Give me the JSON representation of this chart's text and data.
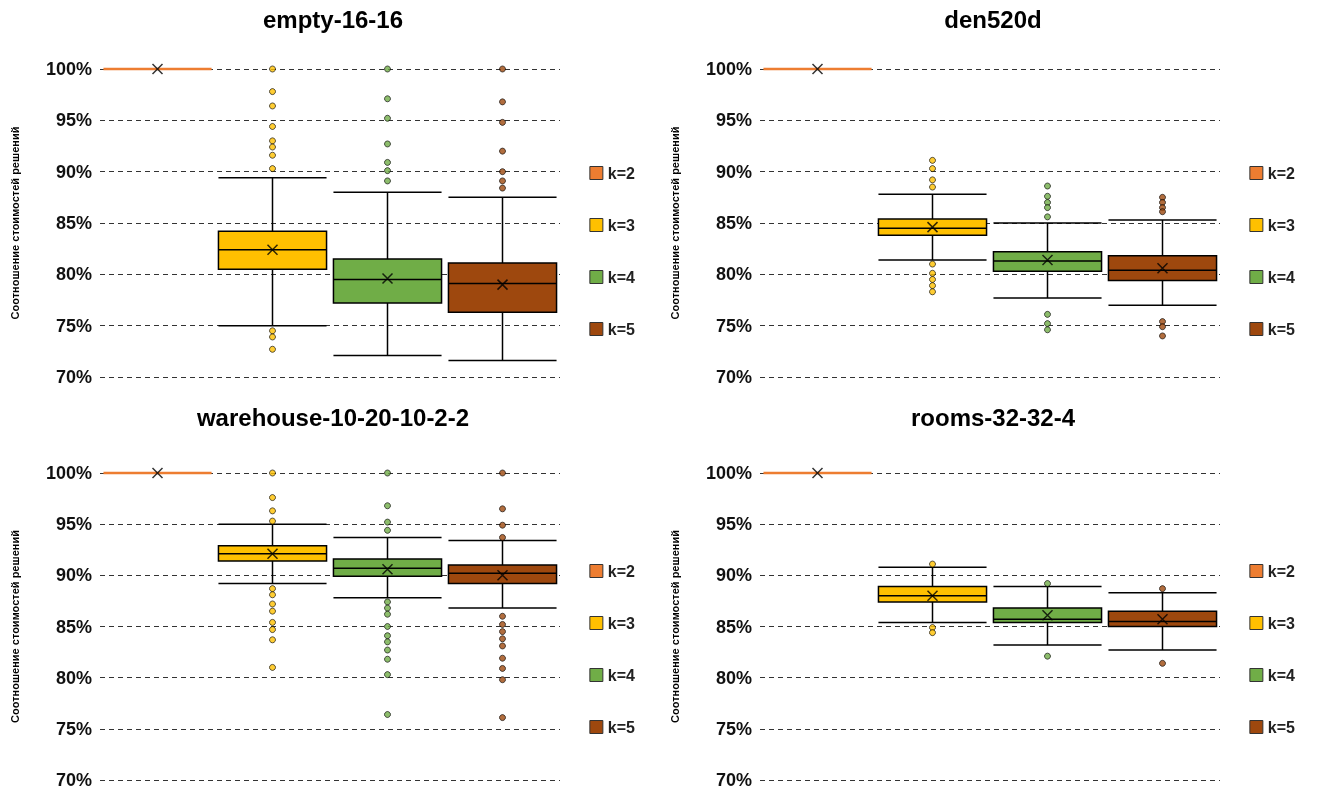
{
  "chart_data": [
    {
      "type": "box",
      "title": "empty-16-16",
      "ylabel": "Соотношение стоимостей решений",
      "categories": [
        null
      ],
      "ylim": [
        70,
        100
      ],
      "yticks": [
        {
          "value": 70,
          "label": "70%"
        },
        {
          "value": 75,
          "label": "75%"
        },
        {
          "value": 80,
          "label": "80%"
        },
        {
          "value": 85,
          "label": "85%"
        },
        {
          "value": 90,
          "label": "90%"
        },
        {
          "value": 95,
          "label": "95%"
        },
        {
          "value": 100,
          "label": "100%"
        }
      ],
      "grid": "y",
      "legend": "right",
      "series": [
        {
          "name": "k=2",
          "color": "#ed7d31",
          "boxes": [
            {
              "low": 100,
              "q1": 100,
              "median": 100,
              "q3": 100,
              "high": 100,
              "mean": 100
            }
          ]
        },
        {
          "name": "k=3",
          "color": "#ffc000",
          "boxes": [
            {
              "low": 75.0,
              "q1": 80.5,
              "median": 82.4,
              "q3": 84.2,
              "high": 89.4,
              "mean": 82.4,
              "outliers": [
                100,
                97.8,
                96.4,
                94.4,
                93.0,
                92.4,
                91.6,
                90.3,
                74.5,
                73.9,
                72.7
              ]
            }
          ]
        },
        {
          "name": "k=4",
          "color": "#70ad47",
          "boxes": [
            {
              "low": 72.1,
              "q1": 77.2,
              "median": 79.5,
              "q3": 81.5,
              "high": 88.0,
              "mean": 79.6,
              "outliers": [
                100,
                97.1,
                95.2,
                92.7,
                90.9,
                90.1,
                89.1
              ]
            }
          ]
        },
        {
          "name": "k=5",
          "color": "#9e480e",
          "boxes": [
            {
              "low": 71.6,
              "q1": 76.3,
              "median": 79.1,
              "q3": 81.1,
              "high": 87.5,
              "mean": 79.0,
              "outliers": [
                100,
                96.8,
                94.8,
                92.0,
                90.0,
                89.1,
                88.4
              ]
            }
          ]
        }
      ]
    },
    {
      "type": "box",
      "title": "den520d",
      "ylabel": "Соотношение стоимостей решений",
      "categories": [
        null
      ],
      "ylim": [
        70,
        100
      ],
      "yticks": [
        {
          "value": 70,
          "label": "70%"
        },
        {
          "value": 75,
          "label": "75%"
        },
        {
          "value": 80,
          "label": "80%"
        },
        {
          "value": 85,
          "label": "85%"
        },
        {
          "value": 90,
          "label": "90%"
        },
        {
          "value": 95,
          "label": "95%"
        },
        {
          "value": 100,
          "label": "100%"
        }
      ],
      "grid": "y",
      "legend": "right",
      "series": [
        {
          "name": "k=2",
          "color": "#ed7d31",
          "boxes": [
            {
              "low": 100,
              "q1": 100,
              "median": 100,
              "q3": 100,
              "high": 100,
              "mean": 100
            }
          ]
        },
        {
          "name": "k=3",
          "color": "#ffc000",
          "boxes": [
            {
              "low": 81.4,
              "q1": 83.8,
              "median": 84.5,
              "q3": 85.4,
              "high": 87.8,
              "mean": 84.6,
              "outliers": [
                91.1,
                90.3,
                89.2,
                88.5,
                81.0,
                80.1,
                79.5,
                78.9,
                78.3
              ]
            }
          ]
        },
        {
          "name": "k=4",
          "color": "#70ad47",
          "boxes": [
            {
              "low": 77.7,
              "q1": 80.3,
              "median": 81.3,
              "q3": 82.2,
              "high": 85.0,
              "mean": 81.4,
              "outliers": [
                88.6,
                87.6,
                87.0,
                86.5,
                85.6,
                76.1,
                75.2,
                74.6
              ]
            }
          ]
        },
        {
          "name": "k=5",
          "color": "#9e480e",
          "boxes": [
            {
              "low": 77.0,
              "q1": 79.4,
              "median": 80.4,
              "q3": 81.8,
              "high": 85.3,
              "mean": 80.6,
              "outliers": [
                87.5,
                87.0,
                86.5,
                86.1,
                75.4,
                74.9,
                74.0
              ]
            }
          ]
        }
      ]
    },
    {
      "type": "box",
      "title": "warehouse-10-20-10-2-2",
      "ylabel": "Соотношение стоимостей решений",
      "categories": [
        null
      ],
      "ylim": [
        70,
        100
      ],
      "yticks": [
        {
          "value": 70,
          "label": "70%"
        },
        {
          "value": 75,
          "label": "75%"
        },
        {
          "value": 80,
          "label": "80%"
        },
        {
          "value": 85,
          "label": "85%"
        },
        {
          "value": 90,
          "label": "90%"
        },
        {
          "value": 95,
          "label": "95%"
        },
        {
          "value": 100,
          "label": "100%"
        }
      ],
      "grid": "y",
      "legend": "right",
      "series": [
        {
          "name": "k=2",
          "color": "#ed7d31",
          "boxes": [
            {
              "low": 100,
              "q1": 100,
              "median": 100,
              "q3": 100,
              "high": 100,
              "mean": 100
            }
          ]
        },
        {
          "name": "k=3",
          "color": "#ffc000",
          "boxes": [
            {
              "low": 89.2,
              "q1": 91.4,
              "median": 92.1,
              "q3": 92.9,
              "high": 95.0,
              "mean": 92.1,
              "outliers": [
                100,
                97.6,
                96.3,
                95.3,
                88.7,
                88.1,
                87.2,
                86.5,
                85.4,
                84.7,
                83.7,
                81.0
              ]
            }
          ]
        },
        {
          "name": "k=4",
          "color": "#70ad47",
          "boxes": [
            {
              "low": 87.8,
              "q1": 89.9,
              "median": 90.7,
              "q3": 91.6,
              "high": 93.7,
              "mean": 90.6,
              "outliers": [
                100,
                96.8,
                95.2,
                94.4,
                87.4,
                86.8,
                86.2,
                85.0,
                84.1,
                83.5,
                82.7,
                81.8,
                80.3,
                76.4
              ]
            }
          ]
        },
        {
          "name": "k=5",
          "color": "#9e480e",
          "boxes": [
            {
              "low": 86.8,
              "q1": 89.2,
              "median": 90.2,
              "q3": 91.0,
              "high": 93.4,
              "mean": 90.0,
              "outliers": [
                100,
                96.5,
                94.9,
                93.7,
                86.0,
                85.2,
                84.5,
                83.8,
                83.1,
                81.9,
                80.9,
                79.8,
                76.1
              ]
            }
          ]
        }
      ]
    },
    {
      "type": "box",
      "title": "rooms-32-32-4",
      "ylabel": "Соотношение стоимостей решений",
      "categories": [
        null
      ],
      "ylim": [
        70,
        100
      ],
      "yticks": [
        {
          "value": 70,
          "label": "70%"
        },
        {
          "value": 75,
          "label": "75%"
        },
        {
          "value": 80,
          "label": "80%"
        },
        {
          "value": 85,
          "label": "85%"
        },
        {
          "value": 90,
          "label": "90%"
        },
        {
          "value": 95,
          "label": "95%"
        },
        {
          "value": 100,
          "label": "100%"
        }
      ],
      "grid": "y",
      "legend": "right",
      "series": [
        {
          "name": "k=2",
          "color": "#ed7d31",
          "boxes": [
            {
              "low": 100,
              "q1": 100,
              "median": 100,
              "q3": 100,
              "high": 100,
              "mean": 100
            }
          ]
        },
        {
          "name": "k=3",
          "color": "#ffc000",
          "boxes": [
            {
              "low": 85.4,
              "q1": 87.4,
              "median": 88.0,
              "q3": 88.9,
              "high": 90.8,
              "mean": 88.0,
              "outliers": [
                91.1,
                84.9,
                84.4
              ]
            }
          ]
        },
        {
          "name": "k=4",
          "color": "#70ad47",
          "boxes": [
            {
              "low": 83.2,
              "q1": 85.4,
              "median": 85.7,
              "q3": 86.8,
              "high": 88.9,
              "mean": 86.1,
              "outliers": [
                89.2,
                82.1
              ]
            }
          ]
        },
        {
          "name": "k=5",
          "color": "#9e480e",
          "boxes": [
            {
              "low": 82.7,
              "q1": 85.0,
              "median": 85.5,
              "q3": 86.5,
              "high": 88.3,
              "mean": 85.7,
              "outliers": [
                88.7,
                81.4
              ]
            }
          ]
        }
      ]
    }
  ]
}
